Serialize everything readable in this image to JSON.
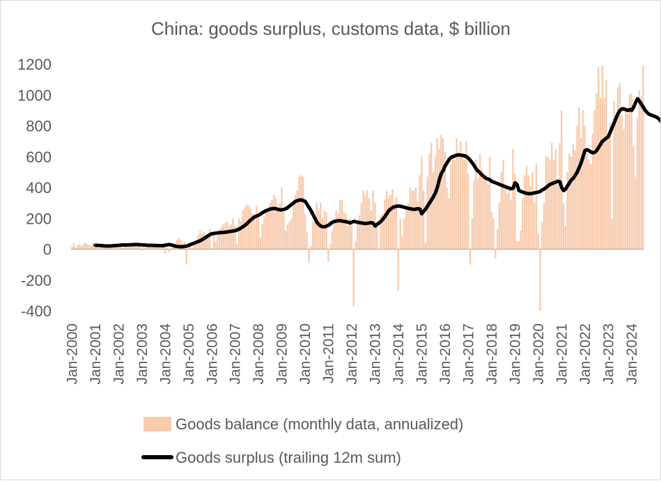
{
  "chart_data": {
    "type": "bar",
    "title": "China: goods surplus, customs data, $ billion",
    "xlabel": "",
    "ylabel": "",
    "ylim": [
      -400,
      1200
    ],
    "yticks": [
      -400,
      -200,
      0,
      200,
      400,
      600,
      800,
      1000,
      1200
    ],
    "grid": false,
    "legend_position": "bottom",
    "x_start": "Jan-2000",
    "x_tick_labels": [
      "Jan-2000",
      "Jan-2001",
      "Jan-2002",
      "Jan-2003",
      "Jan-2004",
      "Jan-2005",
      "Jan-2006",
      "Jan-2007",
      "Jan-2008",
      "Jan-2009",
      "Jan-2010",
      "Jan-2011",
      "Jan-2012",
      "Jan-2013",
      "Jan-2014",
      "Jan-2015",
      "Jan-2016",
      "Jan-2017",
      "Jan-2018",
      "Jan-2019",
      "Jan-2020",
      "Jan-2021",
      "Jan-2022",
      "Jan-2023",
      "Jan-2024"
    ],
    "series": [
      {
        "name": "Goods balance (monthly data, annualized)",
        "type": "bar",
        "color": "#f8cbad",
        "values": [
          15,
          40,
          10,
          25,
          30,
          20,
          35,
          40,
          30,
          25,
          20,
          40,
          10,
          30,
          5,
          20,
          25,
          15,
          30,
          35,
          20,
          10,
          15,
          25,
          5,
          40,
          10,
          25,
          30,
          20,
          30,
          35,
          30,
          25,
          20,
          35,
          -10,
          20,
          5,
          15,
          20,
          30,
          35,
          40,
          30,
          25,
          20,
          35,
          -30,
          10,
          -20,
          5,
          10,
          30,
          60,
          70,
          60,
          40,
          50,
          -100,
          20,
          40,
          10,
          30,
          60,
          90,
          120,
          100,
          110,
          80,
          100,
          130,
          5,
          90,
          50,
          110,
          130,
          140,
          160,
          170,
          180,
          150,
          160,
          200,
          150,
          30,
          200,
          180,
          250,
          270,
          290,
          280,
          260,
          230,
          220,
          280,
          230,
          80,
          160,
          210,
          250,
          260,
          300,
          320,
          350,
          330,
          260,
          300,
          400,
          240,
          120,
          160,
          180,
          200,
          300,
          350,
          380,
          470,
          480,
          470,
          230,
          110,
          -90,
          20,
          180,
          220,
          300,
          250,
          300,
          200,
          250,
          240,
          -80,
          30,
          120,
          170,
          250,
          230,
          320,
          320,
          240,
          230,
          150,
          200,
          160,
          -370,
          50,
          180,
          220,
          300,
          380,
          350,
          380,
          330,
          250,
          380,
          300,
          180,
          0,
          220,
          230,
          320,
          380,
          330,
          350,
          390,
          300,
          340,
          -270,
          200,
          90,
          200,
          260,
          300,
          400,
          380,
          380,
          400,
          310,
          480,
          600,
          380,
          40,
          470,
          620,
          690,
          500,
          600,
          720,
          650,
          740,
          720,
          630,
          400,
          330,
          550,
          600,
          580,
          720,
          620,
          700,
          620,
          580,
          700,
          490,
          -100,
          200,
          450,
          580,
          460,
          620,
          520,
          500,
          480,
          420,
          600,
          240,
          200,
          -60,
          130,
          300,
          500,
          580,
          420,
          360,
          380,
          320,
          650,
          490,
          50,
          50,
          120,
          330,
          480,
          540,
          480,
          410,
          500,
          300,
          550,
          100,
          -400,
          180,
          300,
          600,
          600,
          580,
          690,
          580,
          650,
          420,
          690,
          900,
          300,
          150,
          500,
          620,
          600,
          680,
          640,
          800,
          920,
          720,
          900,
          800,
          620,
          580,
          550,
          750,
          900,
          1010,
          1180,
          980,
          1190,
          980,
          1100,
          720,
          820,
          200,
          960,
          870,
          1050,
          1080,
          870,
          780,
          900,
          880,
          1000,
          1010,
          670,
          470,
          850,
          1030,
          990,
          1190
        ]
      },
      {
        "name": "Goods surplus (trailing 12m sum)",
        "type": "line",
        "color": "#000000",
        "values": [
          25,
          25,
          24,
          23,
          22,
          21,
          21,
          20,
          21,
          22,
          23,
          24,
          25,
          26,
          27,
          27,
          27,
          28,
          28,
          29,
          30,
          30,
          30,
          29,
          28,
          27,
          26,
          25,
          25,
          25,
          24,
          24,
          23,
          23,
          23,
          22,
          26,
          28,
          30,
          28,
          24,
          20,
          18,
          16,
          16,
          16,
          18,
          20,
          25,
          30,
          35,
          40,
          45,
          50,
          55,
          62,
          70,
          78,
          86,
          95,
          100,
          102,
          104,
          106,
          107,
          108,
          109,
          110,
          112,
          114,
          116,
          118,
          120,
          125,
          130,
          138,
          146,
          155,
          165,
          178,
          190,
          200,
          210,
          215,
          220,
          228,
          236,
          244,
          250,
          255,
          260,
          262,
          264,
          262,
          258,
          255,
          255,
          258,
          262,
          270,
          280,
          290,
          300,
          310,
          315,
          318,
          320,
          315,
          310,
          290,
          270,
          250,
          225,
          200,
          175,
          160,
          150,
          145,
          145,
          150,
          155,
          165,
          175,
          180,
          182,
          185,
          185,
          182,
          180,
          178,
          175,
          170,
          175,
          180,
          178,
          175,
          172,
          170,
          168,
          166,
          168,
          170,
          172,
          168,
          150,
          160,
          170,
          180,
          195,
          210,
          230,
          250,
          260,
          270,
          275,
          278,
          280,
          278,
          275,
          272,
          268,
          265,
          262,
          260,
          258,
          260,
          262,
          260,
          230,
          245,
          260,
          280,
          300,
          320,
          340,
          365,
          400,
          450,
          490,
          510,
          540,
          560,
          580,
          595,
          600,
          605,
          610,
          612,
          610,
          608,
          606,
          600,
          590,
          575,
          560,
          540,
          520,
          505,
          495,
          480,
          470,
          460,
          455,
          450,
          440,
          435,
          430,
          425,
          420,
          415,
          410,
          405,
          400,
          395,
          392,
          395,
          430,
          420,
          380,
          375,
          370,
          365,
          362,
          360,
          360,
          362,
          365,
          368,
          370,
          375,
          385,
          390,
          400,
          410,
          420,
          425,
          430,
          435,
          440,
          438,
          400,
          380,
          390,
          410,
          430,
          450,
          460,
          480,
          500,
          530,
          560,
          600,
          640,
          645,
          640,
          630,
          625,
          628,
          640,
          660,
          680,
          700,
          710,
          720,
          730,
          760,
          790,
          820,
          850,
          880,
          900,
          910,
          910,
          905,
          900,
          905,
          900,
          920,
          950,
          975,
          960,
          940,
          920,
          900,
          885,
          875,
          870,
          865,
          860,
          855,
          845,
          830,
          820,
          825,
          840,
          860,
          870
        ]
      }
    ]
  }
}
